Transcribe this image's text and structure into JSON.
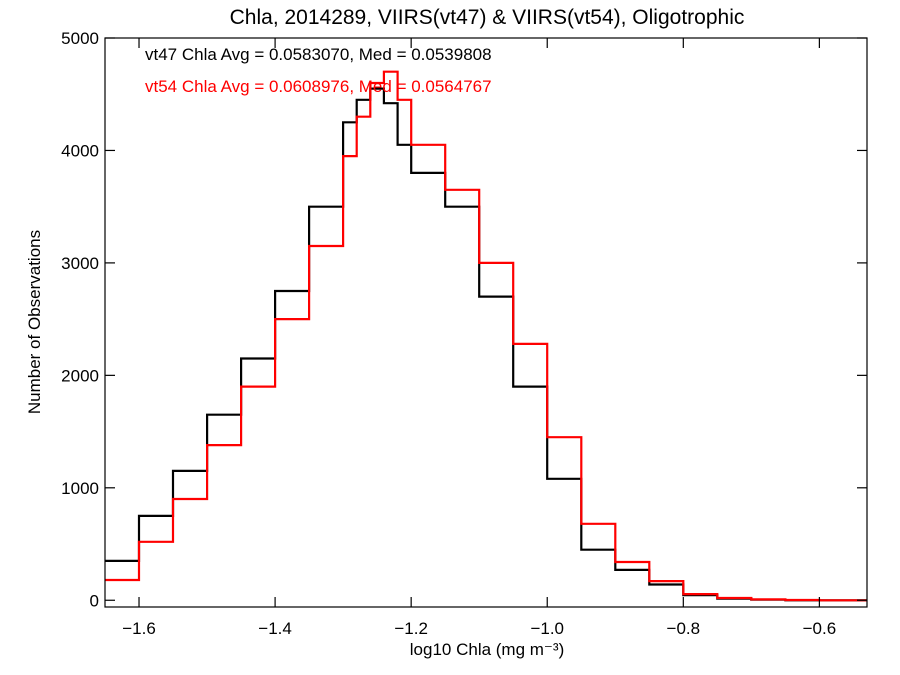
{
  "chart_data": {
    "type": "line",
    "title": "Chla, 2014289, VIIRS(vt47) & VIIRS(vt54), Oligotrophic",
    "xlabel": "log10 Chla (mg m⁻³)",
    "ylabel": "Number of Observations",
    "xlim": [
      -1.65,
      -0.53
    ],
    "ylim": [
      -60,
      5000
    ],
    "xticks": [
      -1.6,
      -1.4,
      -1.2,
      -1.0,
      -0.8,
      -0.6
    ],
    "xtick_labels": [
      "−1.6",
      "−1.4",
      "−1.2",
      "−1.0",
      "−0.8",
      "−0.6"
    ],
    "yticks": [
      0,
      1000,
      2000,
      3000,
      4000,
      5000
    ],
    "ytick_labels": [
      "0",
      "1000",
      "2000",
      "3000",
      "4000",
      "5000"
    ],
    "annotations": [
      {
        "text": "vt47 Chla Avg = 0.0583070, Med = 0.0539808",
        "color": "#000000"
      },
      {
        "text": "vt54 Chla Avg = 0.0608976, Med = 0.0564767",
        "color": "#ff0000"
      }
    ],
    "series": [
      {
        "color": "#000000",
        "x": [
          -1.65,
          -1.6,
          -1.55,
          -1.5,
          -1.45,
          -1.4,
          -1.35,
          -1.3,
          -1.28,
          -1.26,
          -1.24,
          -1.22,
          -1.2,
          -1.15,
          -1.1,
          -1.05,
          -1.0,
          -0.95,
          -0.9,
          -0.85,
          -0.8,
          -0.75,
          -0.7,
          -0.65,
          -0.6,
          -0.55,
          -0.53
        ],
        "values": [
          350,
          750,
          1150,
          1650,
          2150,
          2750,
          3500,
          4250,
          4450,
          4550,
          4420,
          4050,
          3800,
          3500,
          2700,
          1900,
          1080,
          450,
          270,
          140,
          45,
          15,
          5,
          0,
          0,
          0,
          0
        ]
      },
      {
        "color": "#ff0000",
        "x": [
          -1.65,
          -1.6,
          -1.55,
          -1.5,
          -1.45,
          -1.4,
          -1.35,
          -1.3,
          -1.28,
          -1.26,
          -1.24,
          -1.22,
          -1.2,
          -1.15,
          -1.1,
          -1.05,
          -1.0,
          -0.95,
          -0.9,
          -0.85,
          -0.8,
          -0.75,
          -0.7,
          -0.65,
          -0.6,
          -0.55,
          -0.53
        ],
        "values": [
          180,
          520,
          900,
          1380,
          1900,
          2500,
          3150,
          3950,
          4300,
          4600,
          4700,
          4450,
          4050,
          3650,
          3000,
          2280,
          1450,
          680,
          340,
          170,
          55,
          20,
          8,
          2,
          0,
          0,
          0
        ]
      }
    ]
  }
}
